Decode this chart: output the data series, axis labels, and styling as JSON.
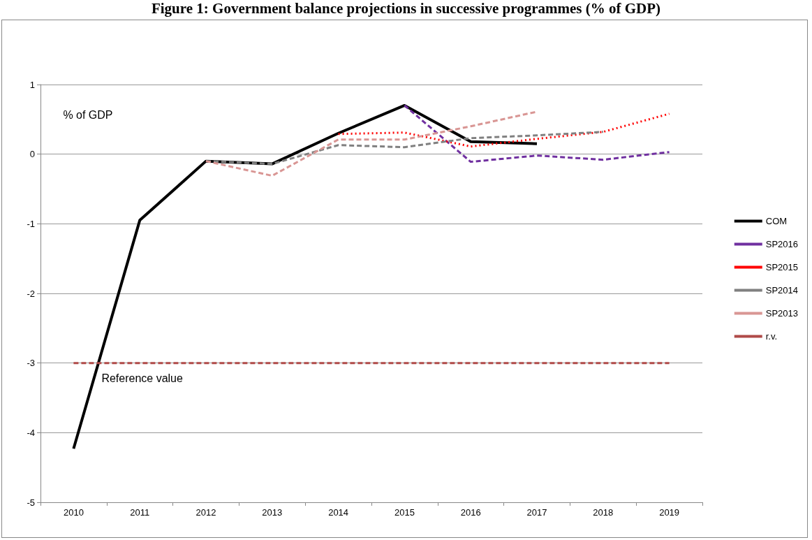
{
  "chart_data": {
    "type": "line",
    "title": "Figure 1: Government balance projections in successive programmes (% of GDP)",
    "categories": [
      "2010",
      "2011",
      "2012",
      "2013",
      "2014",
      "2015",
      "2016",
      "2017",
      "2018",
      "2019"
    ],
    "series": [
      {
        "name": "COM",
        "color": "#000000",
        "line_style": "solid",
        "values": [
          -4.23,
          -0.95,
          -0.1,
          -0.14,
          0.3,
          0.7,
          0.18,
          0.15,
          null,
          null
        ]
      },
      {
        "name": "SP2016",
        "color": "#7030a0",
        "line_style": "dashed",
        "values": [
          null,
          null,
          null,
          null,
          null,
          0.7,
          -0.11,
          -0.02,
          -0.08,
          0.03
        ]
      },
      {
        "name": "SP2015",
        "color": "#ff0000",
        "line_style": "dotted",
        "values": [
          null,
          null,
          null,
          null,
          0.29,
          0.31,
          0.11,
          0.22,
          0.32,
          0.58
        ]
      },
      {
        "name": "SP2014",
        "color": "#808080",
        "line_style": "dashed",
        "values": [
          null,
          null,
          -0.1,
          -0.14,
          0.13,
          0.1,
          0.23,
          0.27,
          0.32,
          null
        ]
      },
      {
        "name": "SP2013",
        "color": "#d99694",
        "line_style": "dashed",
        "values": [
          null,
          null,
          -0.1,
          -0.31,
          0.21,
          0.21,
          0.4,
          0.61,
          null,
          null
        ]
      },
      {
        "name": "r.v.",
        "color": "#b04a48",
        "line_style": "dashed",
        "values": [
          -3,
          -3,
          -3,
          -3,
          -3,
          -3,
          -3,
          -3,
          -3,
          -3
        ]
      }
    ],
    "annotations": [
      {
        "text": "% of GDP"
      },
      {
        "text": "Reference value",
        "x": "2010",
        "y": -3
      }
    ],
    "ylim": [
      -5,
      1
    ],
    "yticks": [
      -5,
      -4,
      -3,
      -2,
      -1,
      0,
      1
    ],
    "grid": "y",
    "legend": "right",
    "marker": "none"
  }
}
